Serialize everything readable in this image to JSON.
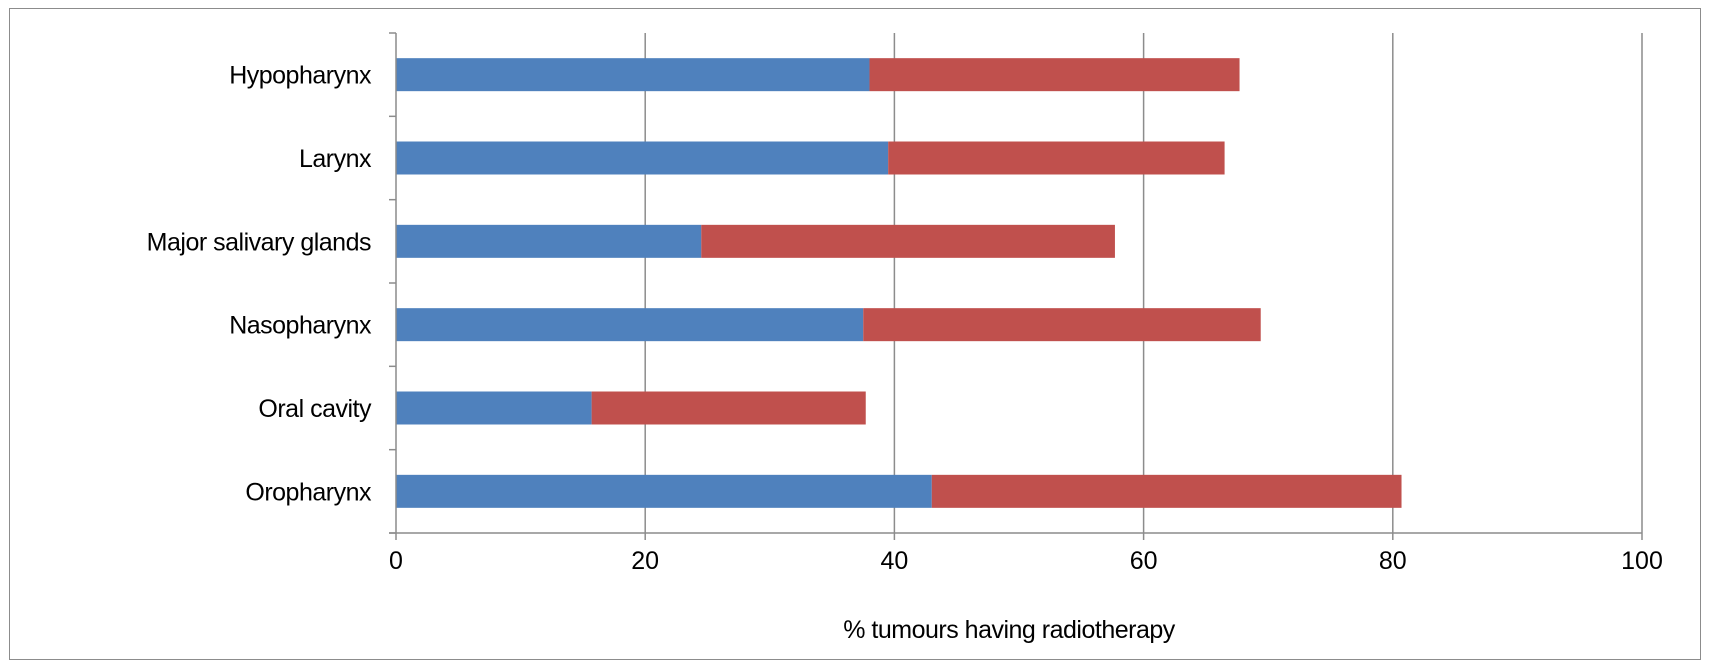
{
  "chart_data": {
    "type": "bar",
    "orientation": "horizontal",
    "stacked": true,
    "categories": [
      "Hypopharynx",
      "Larynx",
      "Major salivary glands",
      "Nasopharynx",
      "Oral cavity",
      "Oropharynx"
    ],
    "series": [
      {
        "color": "#4f81bd",
        "values": [
          38,
          39.5,
          24.5,
          37.5,
          15.7,
          43
        ]
      },
      {
        "color": "#c0504d",
        "values": [
          29.7,
          27,
          33.2,
          31.9,
          22,
          37.7
        ]
      }
    ],
    "xlim": [
      0,
      100
    ],
    "xticks": [
      "0",
      "20",
      "40",
      "60",
      "80",
      "100"
    ],
    "xlabel": "% tumours having radiotherapy",
    "ylabel": "",
    "grid": "vertical",
    "legend": "none"
  }
}
